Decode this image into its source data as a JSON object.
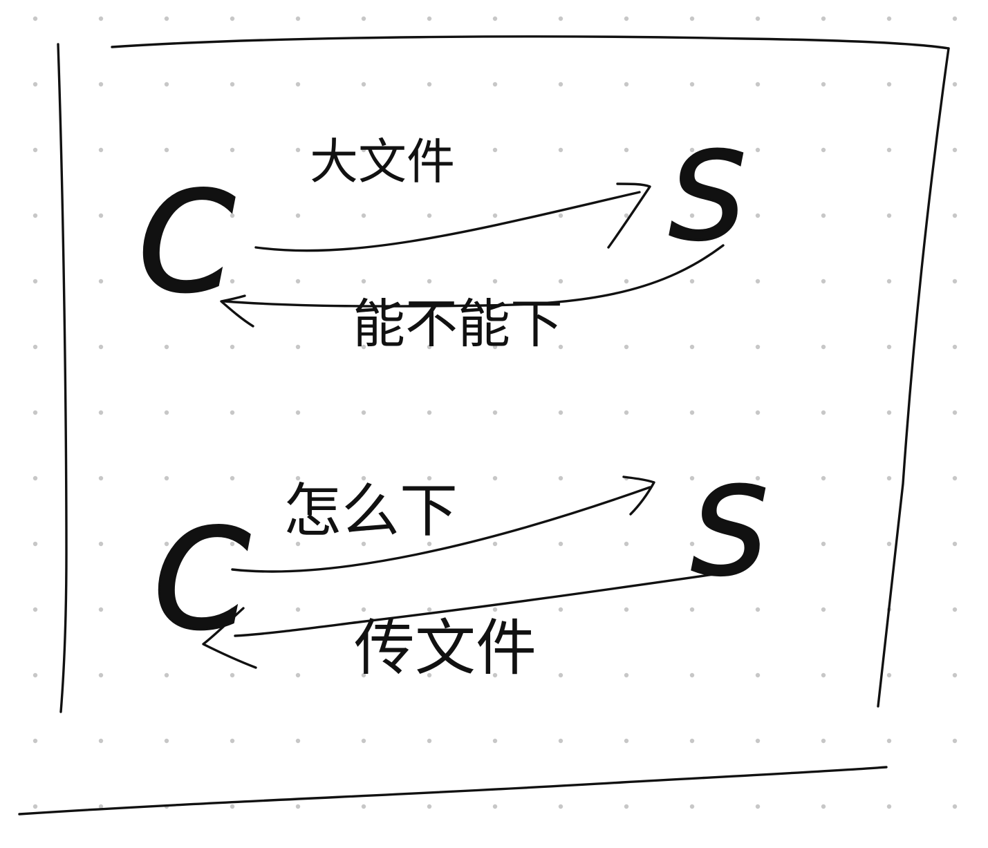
{
  "background": "#ffffff",
  "ink_color": "#111111",
  "dot_color": "#c7c7c7",
  "diagram_top": {
    "client_label": "C",
    "server_label": "S",
    "request_label": "大文件",
    "response_label": "能不能下"
  },
  "diagram_bottom": {
    "client_label": "C",
    "server_label": "S",
    "request_label": "怎么下",
    "response_label": "传文件"
  }
}
